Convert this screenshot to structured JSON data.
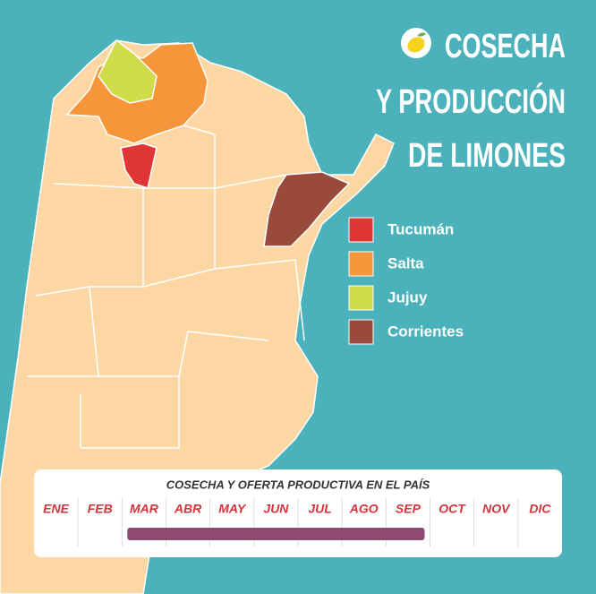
{
  "title_lines": [
    "COSECHA",
    "Y PRODUCCIÓN",
    "DE LIMONES"
  ],
  "legend": [
    {
      "label": "Tucumán",
      "color": "#e03535"
    },
    {
      "label": "Salta",
      "color": "#f7953a"
    },
    {
      "label": "Jujuy",
      "color": "#cfdb4a"
    },
    {
      "label": "Corrientes",
      "color": "#9a4a3c"
    }
  ],
  "timeline": {
    "title": "COSECHA Y OFERTA PRODUCTIVA EN EL PAÍS",
    "months": [
      "ENE",
      "FEB",
      "MAR",
      "ABR",
      "MAY",
      "JUN",
      "JUL",
      "AGO",
      "SEP",
      "OCT",
      "NOV",
      "DIC"
    ],
    "harvest": {
      "from": "MAR",
      "to": "SEP"
    }
  }
}
